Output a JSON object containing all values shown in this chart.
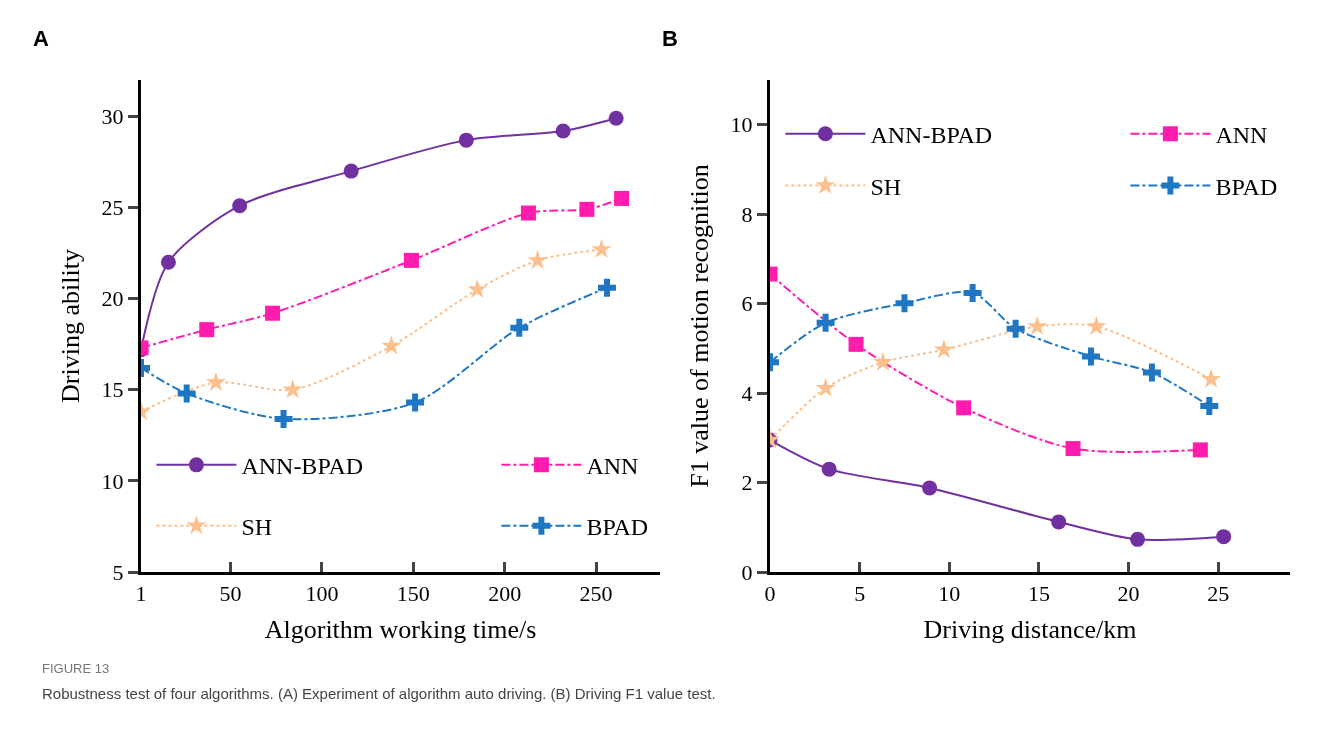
{
  "chart_data": [
    {
      "type": "line",
      "title": "A",
      "xlabel": "Algorithm working time/s",
      "ylabel": "Driving ability",
      "xlim": [
        1,
        285
      ],
      "ylim": [
        5,
        32
      ],
      "xticks": [
        1,
        50,
        100,
        150,
        200,
        250
      ],
      "yticks": [
        5,
        10,
        15,
        20,
        25,
        30
      ],
      "legend": "bottom",
      "annotations": [
        "FIGURE 13",
        "Robustness test of four algorithms. (A) Experiment of algorithm auto driving. (B) Driving F1 value test."
      ],
      "series": [
        {
          "name": "ANN-BPAD",
          "color": "#7030a0",
          "marker": "circle",
          "line_style": "solid",
          "x": [
            1,
            16,
            55,
            116,
            179,
            232,
            261
          ],
          "values": [
            17.2,
            22.0,
            25.1,
            27.0,
            28.7,
            29.2,
            29.9
          ]
        },
        {
          "name": "ANN",
          "color": "#ff1cae",
          "marker": "square",
          "line_style": "dashed",
          "x": [
            1,
            37,
            73,
            149,
            213,
            245,
            264
          ],
          "values": [
            17.3,
            18.3,
            19.2,
            22.1,
            24.7,
            24.9,
            25.5
          ]
        },
        {
          "name": "SH",
          "color": "#fbc08e",
          "marker": "star",
          "line_style": "dotted",
          "x": [
            1,
            42,
            84,
            138,
            185,
            218,
            253
          ],
          "values": [
            13.8,
            15.4,
            15.0,
            17.4,
            20.5,
            22.1,
            22.7
          ]
        },
        {
          "name": "BPAD",
          "color": "#1f77c4",
          "marker": "cross",
          "line_style": "dashed",
          "x": [
            1,
            26,
            79,
            151,
            208,
            256
          ],
          "values": [
            16.2,
            14.8,
            13.4,
            14.3,
            18.4,
            20.6
          ]
        }
      ]
    },
    {
      "type": "line",
      "title": "B",
      "xlabel": "Driving distance/km",
      "ylabel": "F1 value of motion recognition",
      "xlim": [
        0,
        29
      ],
      "ylim": [
        0,
        11
      ],
      "xticks": [
        0,
        5,
        10,
        15,
        20,
        25
      ],
      "yticks": [
        0,
        2,
        4,
        6,
        8,
        10
      ],
      "legend": "top",
      "series": [
        {
          "name": "ANN-BPAD",
          "color": "#7030a0",
          "marker": "circle",
          "line_style": "solid",
          "x": [
            0,
            3.3,
            8.9,
            16.1,
            20.5,
            25.3
          ],
          "values": [
            2.95,
            2.3,
            1.88,
            1.12,
            0.73,
            0.79
          ]
        },
        {
          "name": "ANN",
          "color": "#ff1cae",
          "marker": "square",
          "line_style": "dashed",
          "x": [
            0,
            4.8,
            10.8,
            16.9,
            24.0
          ],
          "values": [
            6.66,
            5.09,
            3.67,
            2.76,
            2.73
          ]
        },
        {
          "name": "SH",
          "color": "#fbc08e",
          "marker": "star",
          "line_style": "dotted",
          "x": [
            0,
            3.1,
            6.3,
            9.7,
            14.9,
            18.2,
            24.6
          ],
          "values": [
            2.95,
            4.11,
            4.69,
            4.97,
            5.49,
            5.49,
            4.31
          ]
        },
        {
          "name": "BPAD",
          "color": "#1f77c4",
          "marker": "cross",
          "line_style": "dashed",
          "x": [
            0,
            3.1,
            7.5,
            11.3,
            13.7,
            17.9,
            21.3,
            24.5
          ],
          "values": [
            4.69,
            5.57,
            6.01,
            6.24,
            5.44,
            4.82,
            4.46,
            3.71
          ]
        }
      ]
    }
  ]
}
